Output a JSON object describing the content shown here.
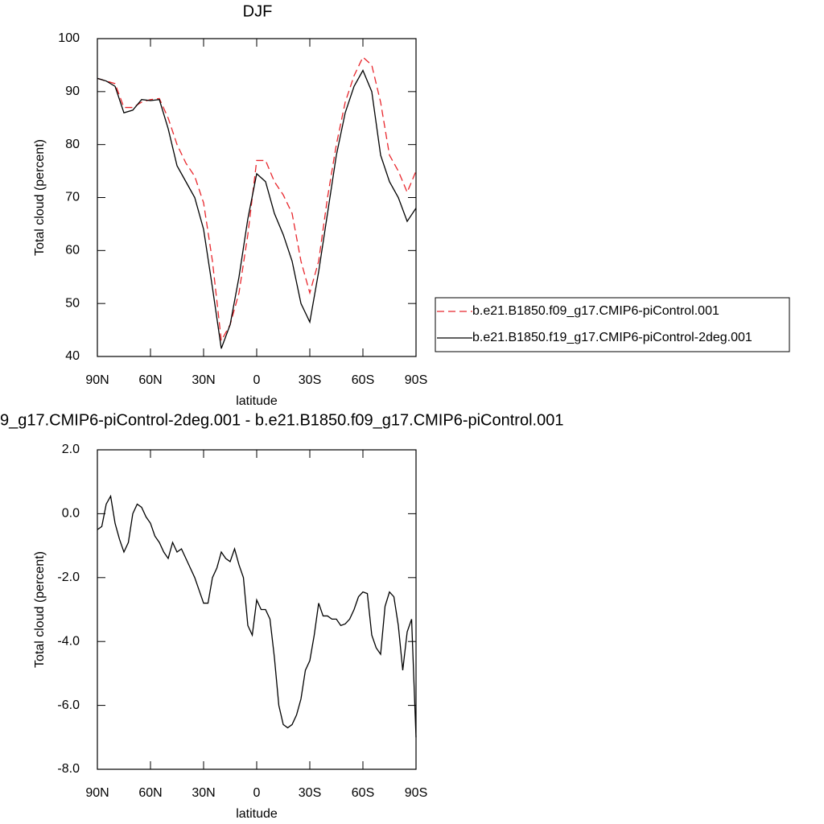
{
  "chart_data": [
    {
      "type": "line",
      "title": "DJF",
      "xlabel": "latitude",
      "ylabel": "Total cloud (percent)",
      "x": [
        90,
        85,
        80,
        75,
        70,
        65,
        60,
        55,
        50,
        45,
        40,
        35,
        30,
        25,
        20,
        15,
        10,
        5,
        0,
        -5,
        -10,
        -15,
        -20,
        -25,
        -30,
        -35,
        -40,
        -45,
        -50,
        -55,
        -60,
        -65,
        -70,
        -75,
        -80,
        -85,
        -90
      ],
      "series": [
        {
          "name": "b.e21.B1850.f09_g17.CMIP6-piControl.001",
          "color": "#e8262c",
          "style": "dashed",
          "values": [
            92.5,
            92,
            91.5,
            87,
            87,
            88,
            88.5,
            88.7,
            85,
            80,
            76.5,
            74,
            69,
            58,
            43,
            46,
            52,
            63,
            77,
            77,
            73,
            70.5,
            67,
            58,
            52,
            58,
            70,
            80,
            88,
            93,
            96.5,
            95,
            88,
            78,
            75,
            71,
            75
          ]
        },
        {
          "name": "b.e21.B1850.f19_g17.CMIP6-piControl-2deg.001",
          "color": "#000000",
          "style": "solid",
          "values": [
            92.5,
            92,
            91,
            86,
            86.5,
            88.5,
            88.3,
            88.5,
            83,
            76,
            73,
            70,
            64,
            53,
            41.5,
            46,
            55,
            66,
            74.5,
            73,
            67,
            63,
            58,
            50,
            46.5,
            56,
            67,
            78,
            86,
            91,
            94,
            90,
            78,
            73,
            70,
            65.5,
            68
          ]
        }
      ],
      "xlim": [
        90,
        -90
      ],
      "xticks": [
        {
          "value": 90,
          "label": "90N"
        },
        {
          "value": 60,
          "label": "60N"
        },
        {
          "value": 30,
          "label": "30N"
        },
        0,
        {
          "value": -30,
          "label": "30S"
        },
        {
          "value": -60,
          "label": "60S"
        },
        {
          "value": -90,
          "label": "90S"
        }
      ],
      "ylim": [
        40,
        100
      ],
      "yticks": [
        40,
        50,
        60,
        70,
        80,
        90,
        100
      ],
      "legend": "right"
    },
    {
      "type": "line",
      "title": "9_g17.CMIP6-piControl-2deg.001 - b.e21.B1850.f09_g17.CMIP6-piControl.001",
      "xlabel": "latitude",
      "ylabel": "Total cloud (percent)",
      "x": [
        90,
        87.5,
        85,
        82.5,
        80,
        77.5,
        75,
        72.5,
        70,
        67.5,
        65,
        62.5,
        60,
        57.5,
        55,
        52.5,
        50,
        47.5,
        45,
        42.5,
        40,
        37.5,
        35,
        32.5,
        30,
        27.5,
        25,
        22.5,
        20,
        17.5,
        15,
        12.5,
        10,
        7.5,
        5,
        2.5,
        0,
        -2.5,
        -5,
        -7.5,
        -10,
        -12.5,
        -15,
        -17.5,
        -20,
        -22.5,
        -25,
        -27.5,
        -30,
        -32.5,
        -35,
        -37.5,
        -40,
        -42.5,
        -45,
        -47.5,
        -50,
        -52.5,
        -55,
        -57.5,
        -60,
        -62.5,
        -65,
        -67.5,
        -70,
        -72.5,
        -75,
        -77.5,
        -80,
        -82.5,
        -85,
        -87.5,
        -90
      ],
      "values": [
        -0.5,
        -0.4,
        0.3,
        0.55,
        -0.3,
        -0.8,
        -1.2,
        -0.9,
        0.0,
        0.3,
        0.2,
        -0.1,
        -0.3,
        -0.7,
        -0.9,
        -1.2,
        -1.4,
        -0.9,
        -1.2,
        -1.1,
        -1.4,
        -1.7,
        -2.0,
        -2.4,
        -2.8,
        -2.8,
        -2.0,
        -1.7,
        -1.2,
        -1.4,
        -1.5,
        -1.1,
        -1.6,
        -2.0,
        -3.5,
        -3.8,
        -2.7,
        -3.0,
        -3.0,
        -3.3,
        -4.5,
        -6.0,
        -6.6,
        -6.7,
        -6.6,
        -6.3,
        -5.8,
        -4.9,
        -4.6,
        -3.8,
        -2.8,
        -3.2,
        -3.2,
        -3.3,
        -3.3,
        -3.5,
        -3.45,
        -3.3,
        -3.0,
        -2.6,
        -2.45,
        -2.5,
        -3.8,
        -4.2,
        -4.4,
        -2.9,
        -2.45,
        -2.6,
        -3.5,
        -4.9,
        -3.7,
        -3.3,
        -7.0
      ],
      "color": "#000000",
      "xlim": [
        90,
        -90
      ],
      "xticks": [
        {
          "value": 90,
          "label": "90N"
        },
        {
          "value": 60,
          "label": "60N"
        },
        {
          "value": 30,
          "label": "30N"
        },
        0,
        {
          "value": -30,
          "label": "30S"
        },
        {
          "value": -60,
          "label": "60S"
        },
        {
          "value": -90,
          "label": "90S"
        }
      ],
      "ylim": [
        -8,
        2
      ],
      "yticks": [
        {
          "value": -8,
          "label": "-8.0"
        },
        {
          "value": -6,
          "label": "-6.0"
        },
        {
          "value": -4,
          "label": "-4.0"
        },
        {
          "value": -2,
          "label": "-2.0"
        },
        {
          "value": 0,
          "label": "0.0"
        },
        {
          "value": 2,
          "label": "2.0"
        }
      ]
    }
  ]
}
